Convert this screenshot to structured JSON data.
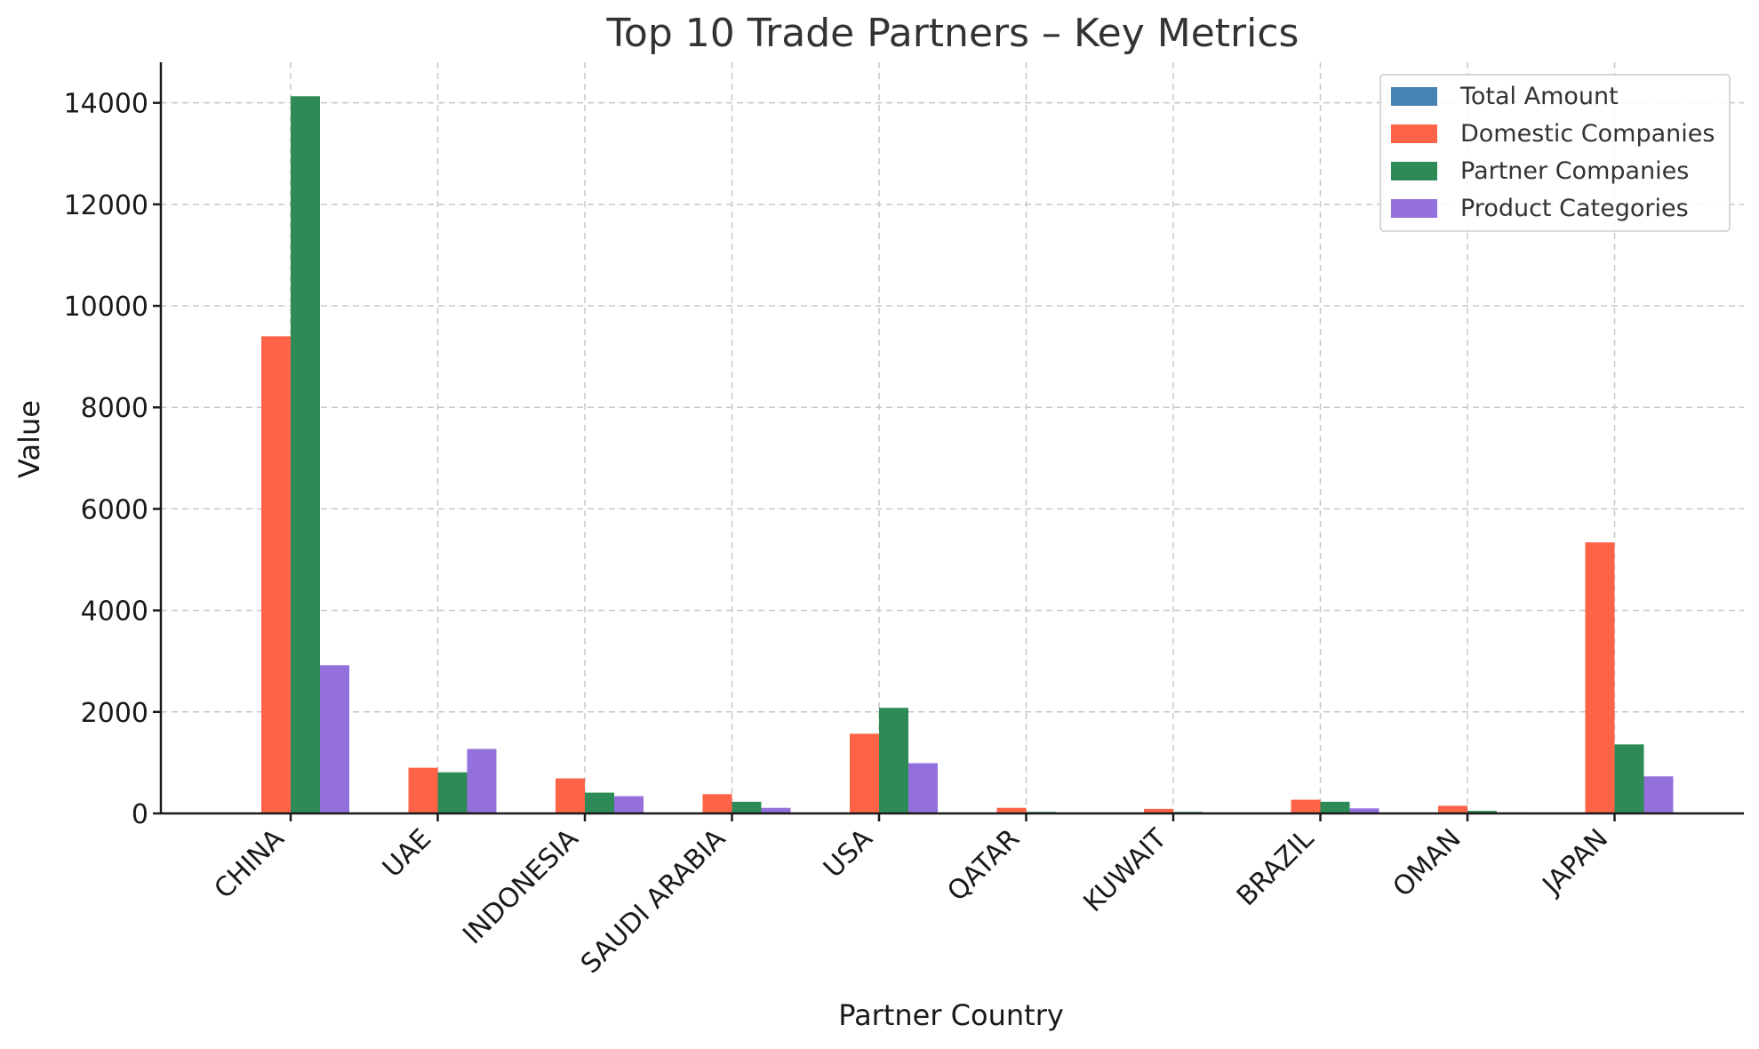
{
  "chart_data": {
    "type": "bar",
    "title": "Top 10 Trade Partners – Key Metrics",
    "xlabel": "Partner Country",
    "ylabel": "Value",
    "ylim": [
      0,
      14800
    ],
    "yticks": [
      "0",
      "2000",
      "4000",
      "6000",
      "8000",
      "10000",
      "12000",
      "14000"
    ],
    "categories": [
      "CHINA",
      "UAE",
      "INDONESIA",
      "SAUDI ARABIA",
      "USA",
      "QATAR",
      "KUWAIT",
      "BRAZIL",
      "OMAN",
      "JAPAN"
    ],
    "series": [
      {
        "name": "Total Amount",
        "color": "#4682b4",
        "values": [
          0,
          0,
          0,
          0,
          0,
          0,
          0,
          0,
          0,
          0
        ]
      },
      {
        "name": "Domestic Companies",
        "color": "#ff6347",
        "values": [
          9400,
          900,
          690,
          380,
          1570,
          110,
          90,
          270,
          150,
          5340
        ]
      },
      {
        "name": "Partner Companies",
        "color": "#2e8b57",
        "values": [
          14130,
          810,
          410,
          230,
          2080,
          30,
          30,
          230,
          50,
          1360
        ]
      },
      {
        "name": "Product Categories",
        "color": "#9370db",
        "values": [
          2920,
          1270,
          340,
          110,
          990,
          10,
          10,
          100,
          20,
          730
        ]
      }
    ],
    "grid": true,
    "legend_position": "top-right"
  }
}
